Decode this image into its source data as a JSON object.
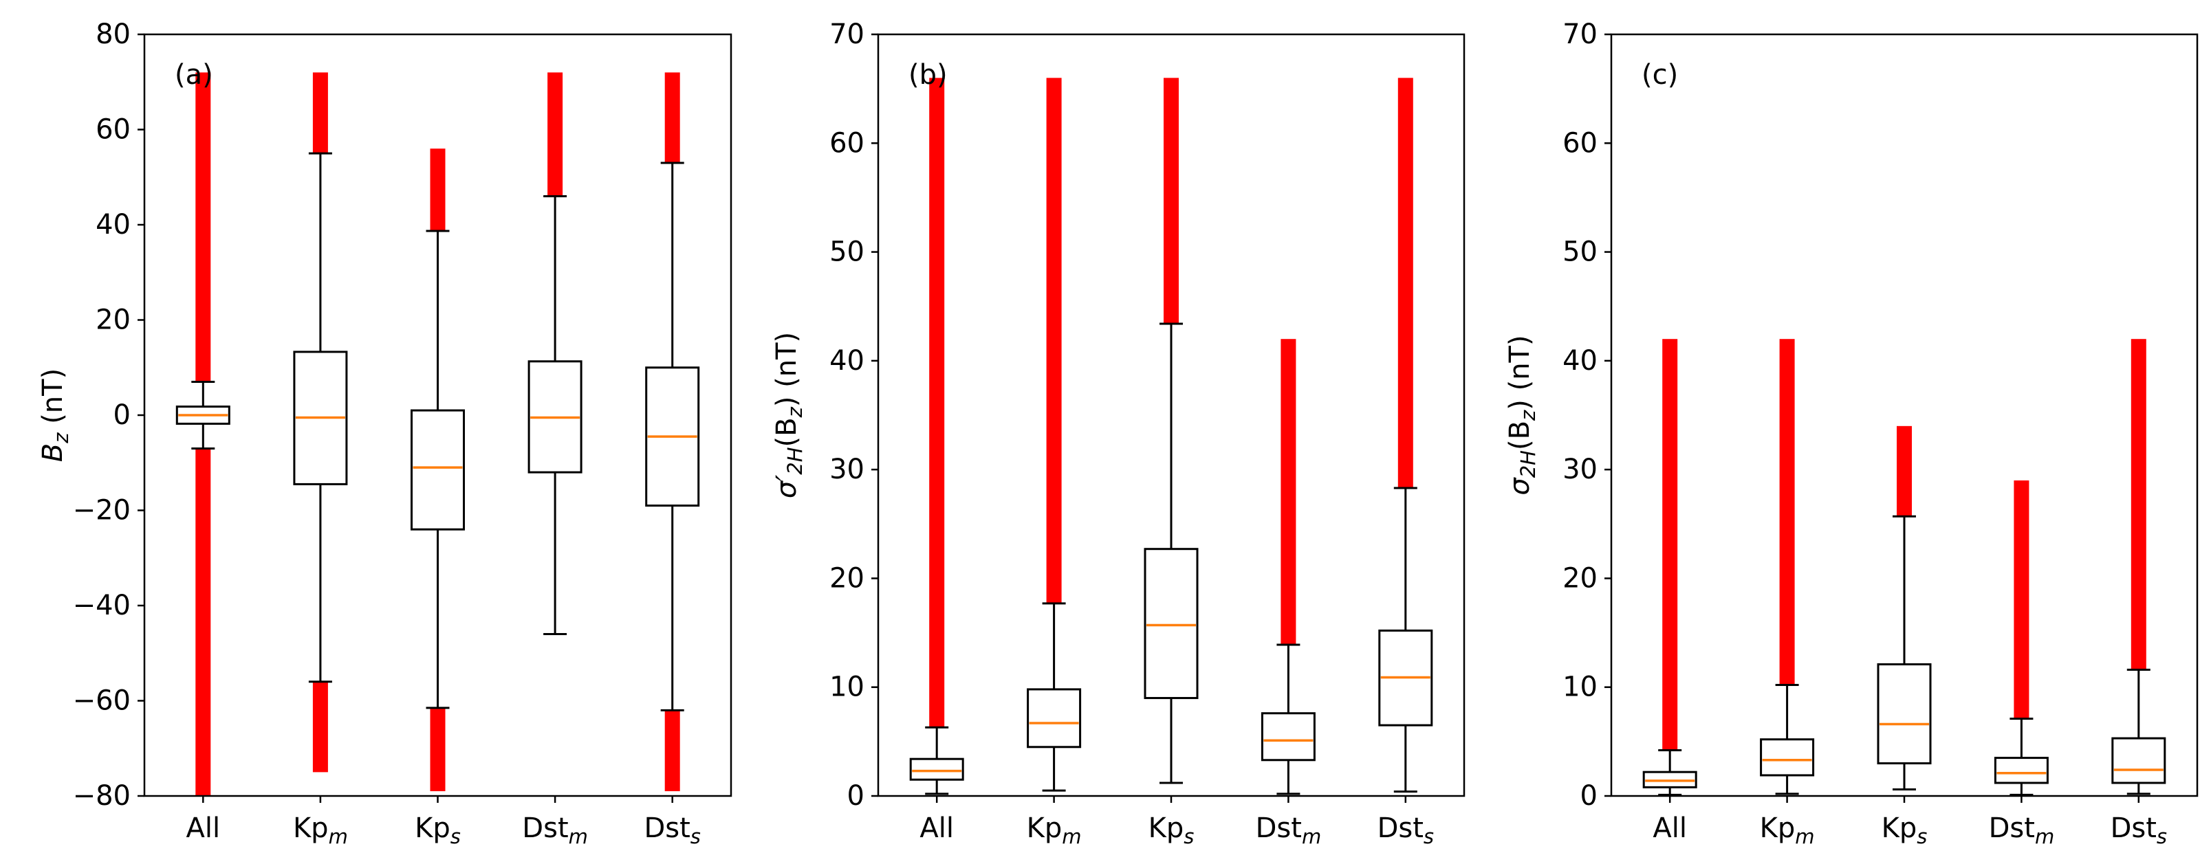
{
  "chart_data": [
    {
      "type": "boxplot",
      "panel": "(a)",
      "ylabel": {
        "main": "B",
        "sub": "z",
        "unit": " (nT)"
      },
      "ylim": [
        -80,
        80
      ],
      "yticks": [
        80,
        60,
        40,
        20,
        0,
        -20,
        -40,
        -60,
        -80
      ],
      "categories": [
        {
          "main": "All",
          "sub": ""
        },
        {
          "main": "Kp",
          "sub": "m"
        },
        {
          "main": "Kp",
          "sub": "s"
        },
        {
          "main": "Dst",
          "sub": "m"
        },
        {
          "main": "Dst",
          "sub": "s"
        }
      ],
      "boxes": [
        {
          "whislo": -7,
          "q1": -1.8,
          "med": 0,
          "q3": 1.8,
          "whishi": 7,
          "fliers_low": [
            -80,
            -7
          ],
          "fliers_high": [
            7,
            72
          ]
        },
        {
          "whislo": -56,
          "q1": -14.5,
          "med": -0.5,
          "q3": 13.3,
          "whishi": 55,
          "fliers_low": [
            -75,
            -56
          ],
          "fliers_high": [
            55,
            72
          ]
        },
        {
          "whislo": -61.5,
          "q1": -24,
          "med": -11,
          "q3": 1,
          "whishi": 38.7,
          "fliers_low": [
            -79,
            -61.5
          ],
          "fliers_high": [
            38.7,
            56
          ]
        },
        {
          "whislo": -46,
          "q1": -12,
          "med": -0.5,
          "q3": 11.3,
          "whishi": 46,
          "fliers_low": null,
          "fliers_high": [
            46,
            72
          ]
        },
        {
          "whislo": -62,
          "q1": -19,
          "med": -4.5,
          "q3": 10,
          "whishi": 53,
          "fliers_low": [
            -79,
            -62
          ],
          "fliers_high": [
            53,
            72
          ]
        }
      ]
    },
    {
      "type": "boxplot",
      "panel": "(b)",
      "ylabel": {
        "main": "σ′",
        "sub": "2H",
        "mid": "(B",
        "sub2": "z",
        "tail": ") (nT)"
      },
      "ylim": [
        0,
        70
      ],
      "yticks": [
        70,
        60,
        50,
        40,
        30,
        20,
        10,
        0
      ],
      "categories": [
        {
          "main": "All",
          "sub": ""
        },
        {
          "main": "Kp",
          "sub": "m"
        },
        {
          "main": "Kp",
          "sub": "s"
        },
        {
          "main": "Dst",
          "sub": "m"
        },
        {
          "main": "Dst",
          "sub": "s"
        }
      ],
      "boxes": [
        {
          "whislo": 0.2,
          "q1": 1.5,
          "med": 2.3,
          "q3": 3.4,
          "whishi": 6.3,
          "fliers_low": null,
          "fliers_high": [
            6.3,
            66
          ]
        },
        {
          "whislo": 0.5,
          "q1": 4.5,
          "med": 6.7,
          "q3": 9.8,
          "whishi": 17.7,
          "fliers_low": null,
          "fliers_high": [
            17.7,
            66
          ]
        },
        {
          "whislo": 1.2,
          "q1": 9,
          "med": 15.7,
          "q3": 22.7,
          "whishi": 43.4,
          "fliers_low": null,
          "fliers_high": [
            43.4,
            66
          ]
        },
        {
          "whislo": 0.2,
          "q1": 3.3,
          "med": 5.1,
          "q3": 7.6,
          "whishi": 13.9,
          "fliers_low": null,
          "fliers_high": [
            13.9,
            42
          ]
        },
        {
          "whislo": 0.4,
          "q1": 6.5,
          "med": 10.9,
          "q3": 15.2,
          "whishi": 28.3,
          "fliers_low": null,
          "fliers_high": [
            28.3,
            66
          ]
        }
      ]
    },
    {
      "type": "boxplot",
      "panel": "(c)",
      "ylabel": {
        "main": "σ",
        "sub": "2H",
        "mid": "(B",
        "sub2": "z",
        "tail": ") (nT)"
      },
      "ylim": [
        0,
        70
      ],
      "yticks": [
        70,
        60,
        50,
        40,
        30,
        20,
        10,
        0
      ],
      "categories": [
        {
          "main": "All",
          "sub": ""
        },
        {
          "main": "Kp",
          "sub": "m"
        },
        {
          "main": "Kp",
          "sub": "s"
        },
        {
          "main": "Dst",
          "sub": "m"
        },
        {
          "main": "Dst",
          "sub": "s"
        }
      ],
      "boxes": [
        {
          "whislo": 0.1,
          "q1": 0.8,
          "med": 1.4,
          "q3": 2.2,
          "whishi": 4.2,
          "fliers_low": null,
          "fliers_high": [
            4.2,
            42
          ]
        },
        {
          "whislo": 0.2,
          "q1": 1.9,
          "med": 3.3,
          "q3": 5.2,
          "whishi": 10.2,
          "fliers_low": null,
          "fliers_high": [
            10.2,
            42
          ]
        },
        {
          "whislo": 0.6,
          "q1": 3,
          "med": 6.6,
          "q3": 12.1,
          "whishi": 25.7,
          "fliers_low": null,
          "fliers_high": [
            25.7,
            34
          ]
        },
        {
          "whislo": 0.1,
          "q1": 1.2,
          "med": 2.1,
          "q3": 3.5,
          "whishi": 7.1,
          "fliers_low": null,
          "fliers_high": [
            7.1,
            29
          ]
        },
        {
          "whislo": 0.2,
          "q1": 1.2,
          "med": 2.4,
          "q3": 5.3,
          "whishi": 11.6,
          "fliers_low": null,
          "fliers_high": [
            11.6,
            42
          ]
        }
      ]
    }
  ],
  "colors": {
    "box": "#000000",
    "median": "#ff7f0e",
    "flier": "#ff0000"
  }
}
